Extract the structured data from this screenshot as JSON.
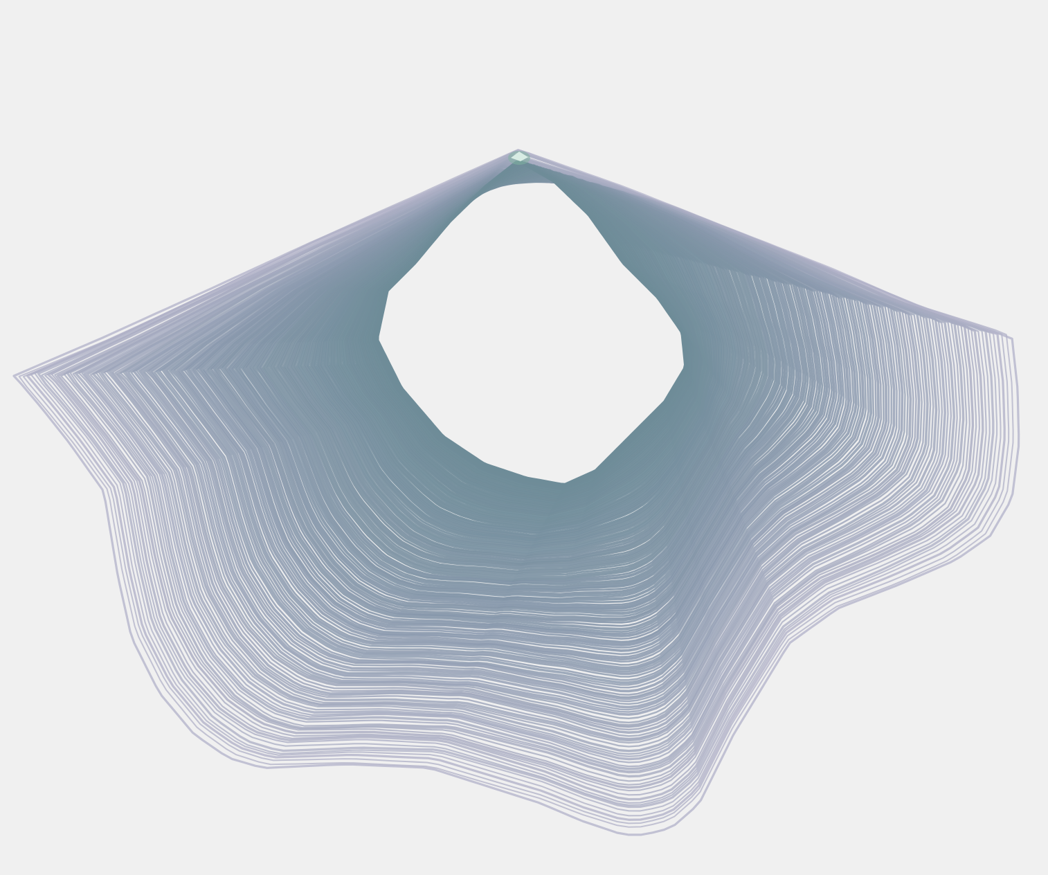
{
  "artwork": {
    "style": "generative contour line art",
    "line_count": 150,
    "colors": {
      "background": "#f0f0f0",
      "line_outer": "#b4b4ca",
      "line_mid": "#8898ac",
      "line_inner": "#6e8c98",
      "fill_core": "#6b8b98",
      "highlight": "#d8ece4",
      "highlight_glow": "#7fb3a0"
    }
  }
}
